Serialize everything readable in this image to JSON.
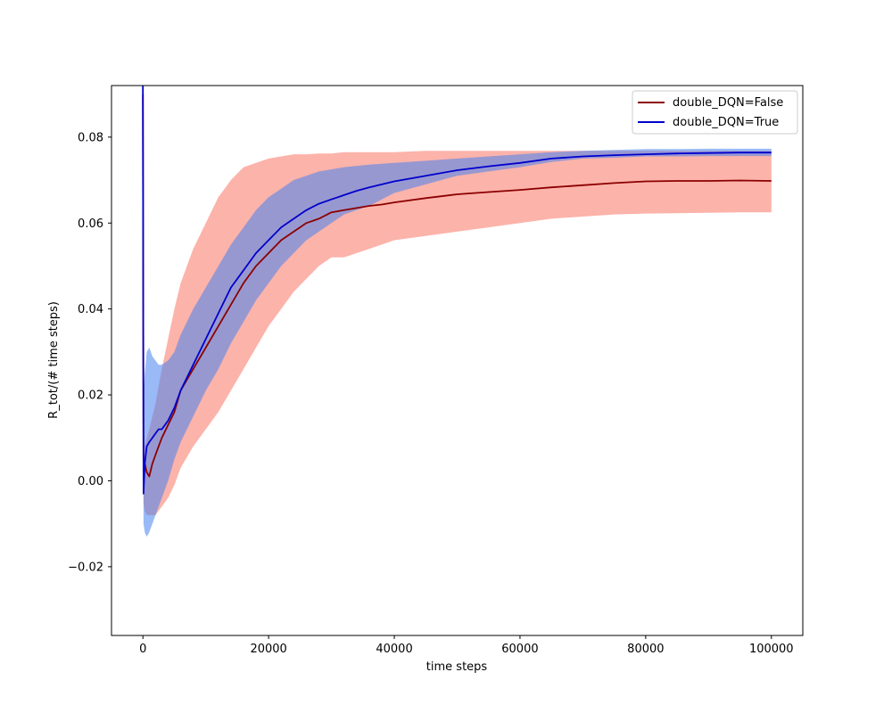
{
  "chart_data": {
    "type": "line",
    "xlabel": "time steps",
    "ylabel": "R_tot/(# time steps)",
    "xlim": [
      -5000,
      105000
    ],
    "ylim": [
      -0.036,
      0.092
    ],
    "x_ticks": [
      0,
      20000,
      40000,
      60000,
      80000,
      100000
    ],
    "x_tick_labels": [
      "0",
      "20000",
      "40000",
      "60000",
      "80000",
      "100000"
    ],
    "y_ticks": [
      -0.02,
      0.0,
      0.02,
      0.04,
      0.06,
      0.08
    ],
    "y_tick_labels": [
      "−0.02",
      "0.00",
      "0.02",
      "0.04",
      "0.06",
      "0.08"
    ],
    "grid": false,
    "legend_position": "top-right",
    "series": [
      {
        "name": "double_DQN=False",
        "color": "#8b0000",
        "band_color": "#fa8072",
        "band_opacity": 0.6,
        "x": [
          0,
          100,
          300,
          600,
          1000,
          1500,
          2000,
          2500,
          3000,
          4000,
          5000,
          6000,
          8000,
          10000,
          12000,
          14000,
          16000,
          18000,
          20000,
          22000,
          24000,
          26000,
          28000,
          30000,
          32000,
          34000,
          36000,
          38000,
          40000,
          45000,
          50000,
          55000,
          60000,
          65000,
          70000,
          75000,
          80000,
          85000,
          90000,
          95000,
          100000
        ],
        "y": [
          0.09,
          0.0,
          0.004,
          0.002,
          0.001,
          0.004,
          0.006,
          0.008,
          0.01,
          0.013,
          0.016,
          0.021,
          0.026,
          0.031,
          0.036,
          0.041,
          0.046,
          0.05,
          0.053,
          0.056,
          0.058,
          0.06,
          0.061,
          0.0625,
          0.063,
          0.0635,
          0.064,
          0.0643,
          0.0648,
          0.0658,
          0.0667,
          0.0672,
          0.0677,
          0.0683,
          0.0688,
          0.0693,
          0.0697,
          0.0698,
          0.0698,
          0.0699,
          0.0698
        ],
        "lower": [
          0.09,
          -0.005,
          -0.007,
          -0.008,
          -0.008,
          -0.008,
          -0.008,
          -0.007,
          -0.006,
          -0.004,
          -0.001,
          0.003,
          0.008,
          0.012,
          0.016,
          0.021,
          0.026,
          0.031,
          0.036,
          0.04,
          0.044,
          0.047,
          0.05,
          0.052,
          0.052,
          0.053,
          0.054,
          0.055,
          0.056,
          0.057,
          0.058,
          0.059,
          0.06,
          0.061,
          0.0615,
          0.062,
          0.0622,
          0.0623,
          0.0624,
          0.0625,
          0.0625
        ],
        "upper": [
          0.09,
          0.005,
          0.008,
          0.01,
          0.012,
          0.015,
          0.018,
          0.022,
          0.026,
          0.033,
          0.04,
          0.046,
          0.054,
          0.06,
          0.066,
          0.07,
          0.073,
          0.074,
          0.075,
          0.0755,
          0.076,
          0.076,
          0.0762,
          0.0762,
          0.0765,
          0.0765,
          0.0765,
          0.0765,
          0.0765,
          0.0768,
          0.0768,
          0.0768,
          0.0768,
          0.0768,
          0.0768,
          0.0768,
          0.0768,
          0.0768,
          0.0768,
          0.0768,
          0.0768
        ]
      },
      {
        "name": "double_DQN=True",
        "color": "#0000cd",
        "band_color": "#4682f0",
        "band_opacity": 0.55,
        "x": [
          0,
          100,
          300,
          600,
          1000,
          1500,
          2000,
          2500,
          3000,
          4000,
          5000,
          6000,
          8000,
          10000,
          12000,
          14000,
          16000,
          18000,
          20000,
          22000,
          24000,
          26000,
          28000,
          30000,
          32000,
          34000,
          36000,
          38000,
          40000,
          45000,
          50000,
          55000,
          60000,
          65000,
          70000,
          75000,
          80000,
          85000,
          90000,
          95000,
          100000
        ],
        "y": [
          0.092,
          -0.003,
          0.004,
          0.008,
          0.009,
          0.01,
          0.011,
          0.012,
          0.012,
          0.014,
          0.017,
          0.021,
          0.027,
          0.033,
          0.039,
          0.045,
          0.049,
          0.053,
          0.056,
          0.059,
          0.061,
          0.063,
          0.0645,
          0.0655,
          0.0665,
          0.0675,
          0.0683,
          0.069,
          0.0697,
          0.071,
          0.0723,
          0.0732,
          0.074,
          0.075,
          0.0755,
          0.0758,
          0.076,
          0.0762,
          0.0763,
          0.0764,
          0.0764
        ],
        "lower": [
          0.092,
          -0.01,
          -0.012,
          -0.013,
          -0.012,
          -0.01,
          -0.008,
          -0.006,
          -0.004,
          0.0,
          0.005,
          0.009,
          0.015,
          0.021,
          0.026,
          0.032,
          0.037,
          0.042,
          0.046,
          0.05,
          0.053,
          0.056,
          0.058,
          0.06,
          0.062,
          0.063,
          0.064,
          0.0655,
          0.067,
          0.069,
          0.071,
          0.072,
          0.073,
          0.0742,
          0.075,
          0.0752,
          0.0755,
          0.0755,
          0.0756,
          0.0756,
          0.0756
        ],
        "upper": [
          0.092,
          0.02,
          0.025,
          0.03,
          0.031,
          0.029,
          0.028,
          0.027,
          0.027,
          0.028,
          0.03,
          0.034,
          0.04,
          0.045,
          0.05,
          0.055,
          0.059,
          0.063,
          0.066,
          0.068,
          0.07,
          0.071,
          0.072,
          0.0725,
          0.073,
          0.0733,
          0.0736,
          0.0738,
          0.074,
          0.0745,
          0.075,
          0.0755,
          0.076,
          0.0765,
          0.0768,
          0.077,
          0.0772,
          0.0772,
          0.0773,
          0.0773,
          0.0773
        ]
      }
    ]
  }
}
